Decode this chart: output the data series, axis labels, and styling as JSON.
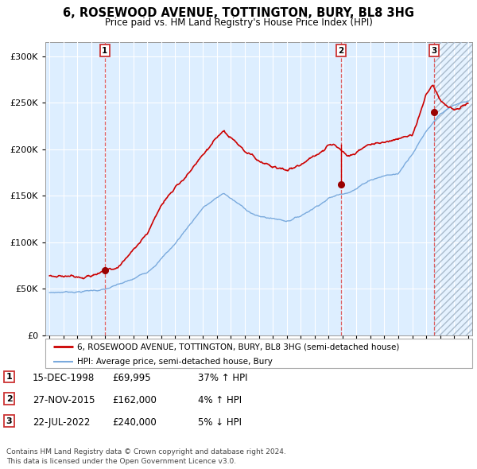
{
  "title": "6, ROSEWOOD AVENUE, TOTTINGTON, BURY, BL8 3HG",
  "subtitle": "Price paid vs. HM Land Registry's House Price Index (HPI)",
  "xlim_start": 1994.7,
  "xlim_end": 2025.3,
  "ylim": [
    0,
    315000
  ],
  "yticks": [
    0,
    50000,
    100000,
    150000,
    200000,
    250000,
    300000
  ],
  "ytick_labels": [
    "£0",
    "£50K",
    "£100K",
    "£150K",
    "£200K",
    "£250K",
    "£300K"
  ],
  "legend_line1": "6, ROSEWOOD AVENUE, TOTTINGTON, BURY, BL8 3HG (semi-detached house)",
  "legend_line2": "HPI: Average price, semi-detached house, Bury",
  "red_line_color": "#cc0000",
  "blue_line_color": "#7aaadd",
  "marker_color": "#990000",
  "dashed_color": "#dd4444",
  "bg_color": "#ddeeff",
  "grid_color": "#ffffff",
  "sale1_x": 1998.96,
  "sale1_y": 69995,
  "sale2_x": 2015.91,
  "sale2_y": 162000,
  "sale3_x": 2022.55,
  "sale3_y": 240000,
  "table_rows": [
    [
      "1",
      "15-DEC-1998",
      "£69,995",
      "37% ↑ HPI"
    ],
    [
      "2",
      "27-NOV-2015",
      "£162,000",
      "4% ↑ HPI"
    ],
    [
      "3",
      "22-JUL-2022",
      "£240,000",
      "5% ↓ HPI"
    ]
  ],
  "footnote": "Contains HM Land Registry data © Crown copyright and database right 2024.\nThis data is licensed under the Open Government Licence v3.0."
}
